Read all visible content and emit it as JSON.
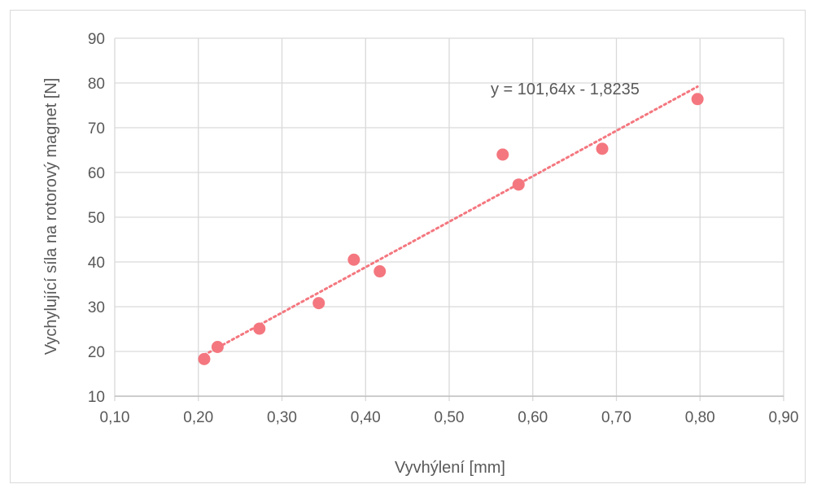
{
  "chart_data": {
    "type": "scatter",
    "xlabel": "Vyvhýlení [mm]",
    "ylabel": "Vychylující síla na rotorový magnet [N]",
    "xlim": [
      0.1,
      0.9
    ],
    "ylim": [
      10,
      90
    ],
    "x_ticks": [
      "0,10",
      "0,20",
      "0,30",
      "0,40",
      "0,50",
      "0,60",
      "0,70",
      "0,80",
      "0,90"
    ],
    "y_ticks": [
      "10",
      "20",
      "30",
      "40",
      "50",
      "60",
      "70",
      "80",
      "90"
    ],
    "grid": true,
    "series": [
      {
        "points": [
          {
            "x": 0.207,
            "y": 18.3
          },
          {
            "x": 0.223,
            "y": 21.0
          },
          {
            "x": 0.273,
            "y": 25.1
          },
          {
            "x": 0.344,
            "y": 30.8
          },
          {
            "x": 0.386,
            "y": 40.5
          },
          {
            "x": 0.417,
            "y": 37.9
          },
          {
            "x": 0.564,
            "y": 64.0
          },
          {
            "x": 0.583,
            "y": 57.3
          },
          {
            "x": 0.683,
            "y": 65.3
          },
          {
            "x": 0.797,
            "y": 76.4
          }
        ],
        "color": "#f4777f"
      }
    ],
    "trendline": {
      "type": "linear",
      "slope": 101.64,
      "intercept": -1.8235,
      "x_range": [
        0.207,
        0.797
      ],
      "color": "#f4777f",
      "label": "y = 101,64x - 1,8235"
    },
    "colors": {
      "grid": "#d9d9d9",
      "text": "#595959"
    }
  }
}
